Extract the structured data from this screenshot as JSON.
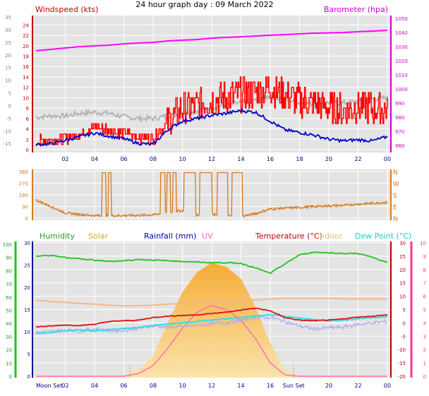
{
  "title": "24 hour graph day : 09 March 2022",
  "colors": {
    "background": "#ffffff",
    "plot_bg": "#e4e4e4",
    "grid": "#ffffff",
    "wind_speed": "#ff0000",
    "wind_avg": "#0000c8",
    "wind_gust_smooth": "#b4b4b4",
    "barometer": "#ff00ff",
    "wind_dir": "#d77a1c",
    "humidity": "#21c421",
    "solar": "#f7b733",
    "rainfall": "#0000a0",
    "uv": "#ff6fb0",
    "temperature": "#e01010",
    "indoor": "#f4b88a",
    "dew_point": "#33dde8",
    "feels_like": "#aaaaf0"
  },
  "chart_data": [
    {
      "type": "line",
      "name": "wind-barometer",
      "x_ticks": [
        "02",
        "04",
        "06",
        "08",
        "10",
        "12",
        "14",
        "16",
        "18",
        "20",
        "22",
        "00"
      ],
      "left_axis": {
        "label": "Windspeed (kts)",
        "ticks": [
          "0",
          "2",
          "4",
          "6",
          "8",
          "10",
          "12",
          "14",
          "16",
          "18",
          "20",
          "22",
          "24"
        ],
        "ylim": [
          0,
          25
        ]
      },
      "left_outer_axis": {
        "ticks": [
          "-15",
          "-10",
          "-5",
          "0",
          "5",
          "10",
          "15",
          "20",
          "25",
          "30",
          "35"
        ],
        "ylim": [
          -18,
          35
        ]
      },
      "right_axis": {
        "label": "Barometer (hpa)",
        "ticks": [
          "960",
          "970",
          "980",
          "990",
          "1000",
          "1010",
          "1020",
          "1030",
          "1040",
          "1050"
        ],
        "ylim": [
          955,
          1052
        ]
      },
      "series": [
        {
          "role": "barometer",
          "values": [
            1027,
            1028,
            1029,
            1030,
            1030.5,
            1031,
            1032,
            1032.5,
            1033,
            1034,
            1034.5,
            1035,
            1036,
            1036.5,
            1037,
            1037.5,
            1038,
            1038.5,
            1039,
            1039.5,
            1039.7,
            1040,
            1040.5,
            1041,
            1041.5
          ]
        },
        {
          "role": "speed",
          "values": [
            1.4,
            2.0,
            2.2,
            3.0,
            4.5,
            3.8,
            3.2,
            2.5,
            2.0,
            5.5,
            8.0,
            8.5,
            9.5,
            10,
            10.5,
            11.0,
            12,
            10.5,
            9.5,
            8.8,
            8.0,
            7.5,
            8.5,
            8.0,
            7.5
          ]
        },
        {
          "role": "average",
          "values": [
            1.0,
            1.1,
            1.8,
            2.5,
            3.2,
            2.6,
            2.1,
            1.2,
            1.0,
            3.8,
            5.5,
            6.0,
            6.6,
            7.0,
            7.5,
            7.2,
            5.5,
            3.8,
            3.3,
            2.8,
            2.0,
            1.7,
            1.9,
            1.7,
            2.5
          ]
        },
        {
          "role": "gust-smooth",
          "values": [
            6.2,
            6.5,
            6.5,
            7.0,
            7.2,
            7.0,
            6.3,
            6.0,
            6.0,
            6.5,
            7.0,
            7.5,
            8.0,
            8.6,
            9.0,
            9.5,
            10.3,
            9.7,
            9.0,
            8.8,
            9.1,
            9.0,
            9.3,
            9.8,
            10.0
          ]
        }
      ]
    },
    {
      "type": "line",
      "name": "wind-direction",
      "left_axis": {
        "ticks": [
          "0",
          "90",
          "180",
          "270",
          "360"
        ],
        "ylim": [
          0,
          360
        ]
      },
      "right_axis": {
        "ticks": [
          "N",
          "E",
          "S",
          "W",
          "N"
        ]
      },
      "series": [
        {
          "role": "direction",
          "values": [
            140,
            90,
            40,
            28,
            20,
            18,
            20,
            22,
            25,
            45,
            58,
            25,
            30,
            18,
            12,
            35,
            70,
            78,
            82,
            90,
            95,
            98,
            108,
            115,
            122
          ]
        }
      ]
    },
    {
      "type": "area",
      "name": "temp-humidity-solar",
      "x_ticks": [
        "Moon Set",
        "02",
        "04",
        "06",
        "08",
        "10",
        "12",
        "14",
        "16",
        "Sun Set",
        "20",
        "22",
        "00"
      ],
      "humidity_axis": {
        "label": "Humidity",
        "ticks": [
          "0",
          "10",
          "20",
          "30",
          "40",
          "50",
          "60",
          "70",
          "80",
          "90",
          "100"
        ],
        "ylim": [
          0,
          100
        ]
      },
      "solar_label": "Solar",
      "rain_axis": {
        "label": "Rainfall (mm)",
        "ticks": [
          "0",
          "5",
          "10",
          "15",
          "20",
          "25",
          "30"
        ],
        "ylim": [
          0,
          30
        ]
      },
      "uv_label": "UV",
      "temp_axis": {
        "label": "Temperature (°C)",
        "ticks": [
          "-20",
          "-15",
          "-10",
          "-5",
          "0",
          "5",
          "10",
          "15",
          "20",
          "25",
          "30"
        ],
        "ylim": [
          -20,
          30
        ]
      },
      "indoor_label": "Indoor",
      "uv_axis": {
        "label": "Dew Point (°C)",
        "ticks": [
          "0",
          "1",
          "2",
          "3",
          "4",
          "5",
          "6",
          "7",
          "8",
          "9",
          "10"
        ],
        "ylim": [
          0,
          10
        ]
      },
      "series": [
        {
          "role": "humidity",
          "values": [
            91,
            91.5,
            90,
            89,
            88,
            87,
            87.5,
            88.5,
            88,
            87.5,
            87,
            86.5,
            86,
            86,
            85.5,
            82,
            78,
            85,
            92,
            94,
            93.5,
            93,
            93,
            90,
            86
          ]
        },
        {
          "role": "temperature",
          "values": [
            -1.5,
            -1.2,
            -0.8,
            -1.0,
            -0.5,
            0.5,
            0.8,
            1.0,
            2.0,
            2.5,
            2.8,
            3.0,
            3.5,
            4.0,
            4.8,
            5.5,
            4.5,
            2.0,
            1.0,
            0.8,
            1.0,
            1.5,
            2.2,
            2.5,
            3.0
          ]
        },
        {
          "role": "dew-point",
          "values": [
            -4.0,
            -3.6,
            -3.0,
            -2.6,
            -3.1,
            -2.4,
            -2.2,
            -1.7,
            -1.0,
            -0.4,
            0.0,
            0.6,
            1.0,
            1.5,
            2.0,
            2.6,
            3.0,
            2.5,
            1.8,
            1.2,
            0.8,
            1.0,
            1.6,
            1.9,
            2.4
          ]
        },
        {
          "role": "feels-like",
          "values": [
            -3.6,
            -3.2,
            -2.6,
            -3.1,
            -2.2,
            -3.0,
            -2.8,
            -2.1,
            -1.1,
            -1.6,
            -1.4,
            -0.9,
            -0.4,
            0.1,
            1.0,
            2.0,
            2.0,
            0.5,
            -1.2,
            -2.3,
            -1.8,
            -1.6,
            -0.5,
            0.0,
            0.5
          ]
        },
        {
          "role": "indoor",
          "values": [
            8.5,
            8.0,
            7.7,
            7.3,
            7.0,
            6.6,
            6.4,
            6.4,
            6.6,
            7.0,
            7.3,
            7.6,
            7.8,
            8.0,
            8.5,
            8.6,
            8.9,
            9.2,
            9.2,
            9.2,
            9.2,
            9.0,
            9.0,
            9.0,
            9.0
          ]
        },
        {
          "role": "solar",
          "values": [
            0,
            0,
            0,
            0,
            0,
            0,
            0,
            0.5,
            1.5,
            4.0,
            6.3,
            7.8,
            8.5,
            8.2,
            7.3,
            5.2,
            2.5,
            0.4,
            0,
            0,
            0,
            0,
            0,
            0,
            0
          ]
        },
        {
          "role": "uv",
          "values": [
            0,
            0,
            0,
            0,
            0,
            0,
            0,
            0.2,
            0.8,
            2.1,
            3.6,
            4.8,
            5.3,
            5.0,
            4.2,
            2.8,
            1.0,
            0.1,
            0,
            0,
            0,
            0,
            0,
            0,
            0
          ]
        }
      ]
    }
  ]
}
